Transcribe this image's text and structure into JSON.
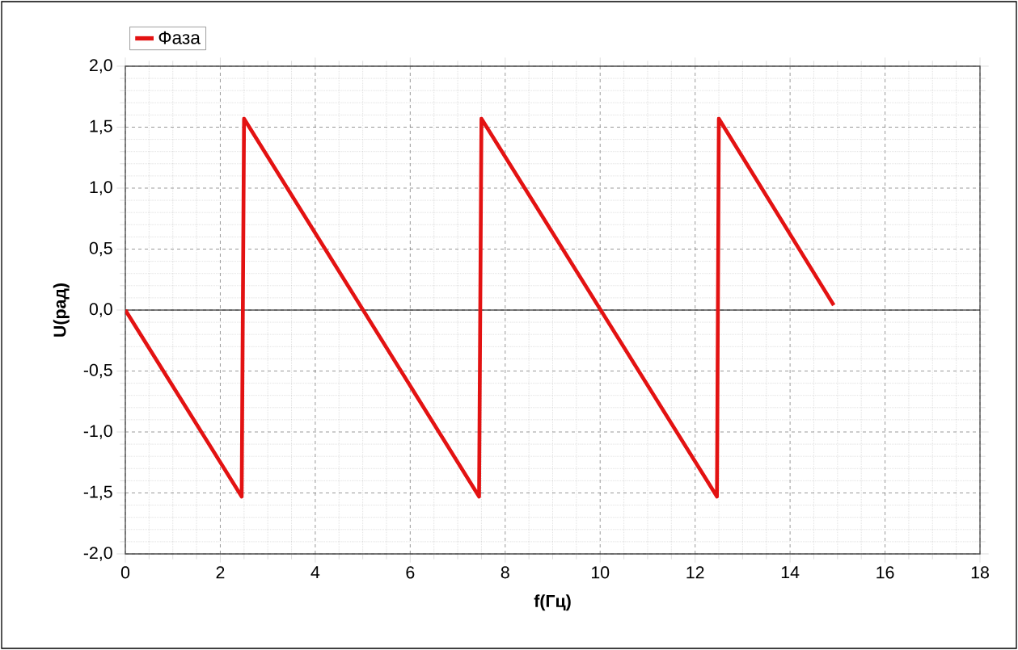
{
  "chart_data": {
    "type": "line",
    "xlabel": "f(Гц)",
    "ylabel": "U(рад)",
    "xlim": [
      0,
      18
    ],
    "ylim": [
      -2,
      2
    ],
    "xticks": [
      0,
      2,
      4,
      6,
      8,
      10,
      12,
      14,
      16,
      18
    ],
    "yticks": [
      {
        "value": -2,
        "label": "-2,0"
      },
      {
        "value": -1.5,
        "label": "-1,5"
      },
      {
        "value": -1,
        "label": "-1,0"
      },
      {
        "value": -0.5,
        "label": "-0,5"
      },
      {
        "value": 0,
        "label": "0,0"
      },
      {
        "value": 0.5,
        "label": "0,5"
      },
      {
        "value": 1,
        "label": "1,0"
      },
      {
        "value": 1.5,
        "label": "1,5"
      },
      {
        "value": 2,
        "label": "2,0"
      }
    ],
    "grid": true,
    "legend": "top left",
    "marker": "none",
    "line_style": "solid",
    "ref_lines": [
      {
        "axis": "y",
        "value": 0,
        "color": "#000000"
      }
    ],
    "series": [
      {
        "name": "Фаза",
        "color": "#e31212",
        "x": [
          0,
          2.45,
          2.5,
          7.45,
          7.5,
          12.46,
          12.5,
          14.92
        ],
        "values": [
          0,
          -1.53,
          1.57,
          -1.53,
          1.57,
          -1.53,
          1.57,
          0.04
        ]
      }
    ]
  }
}
